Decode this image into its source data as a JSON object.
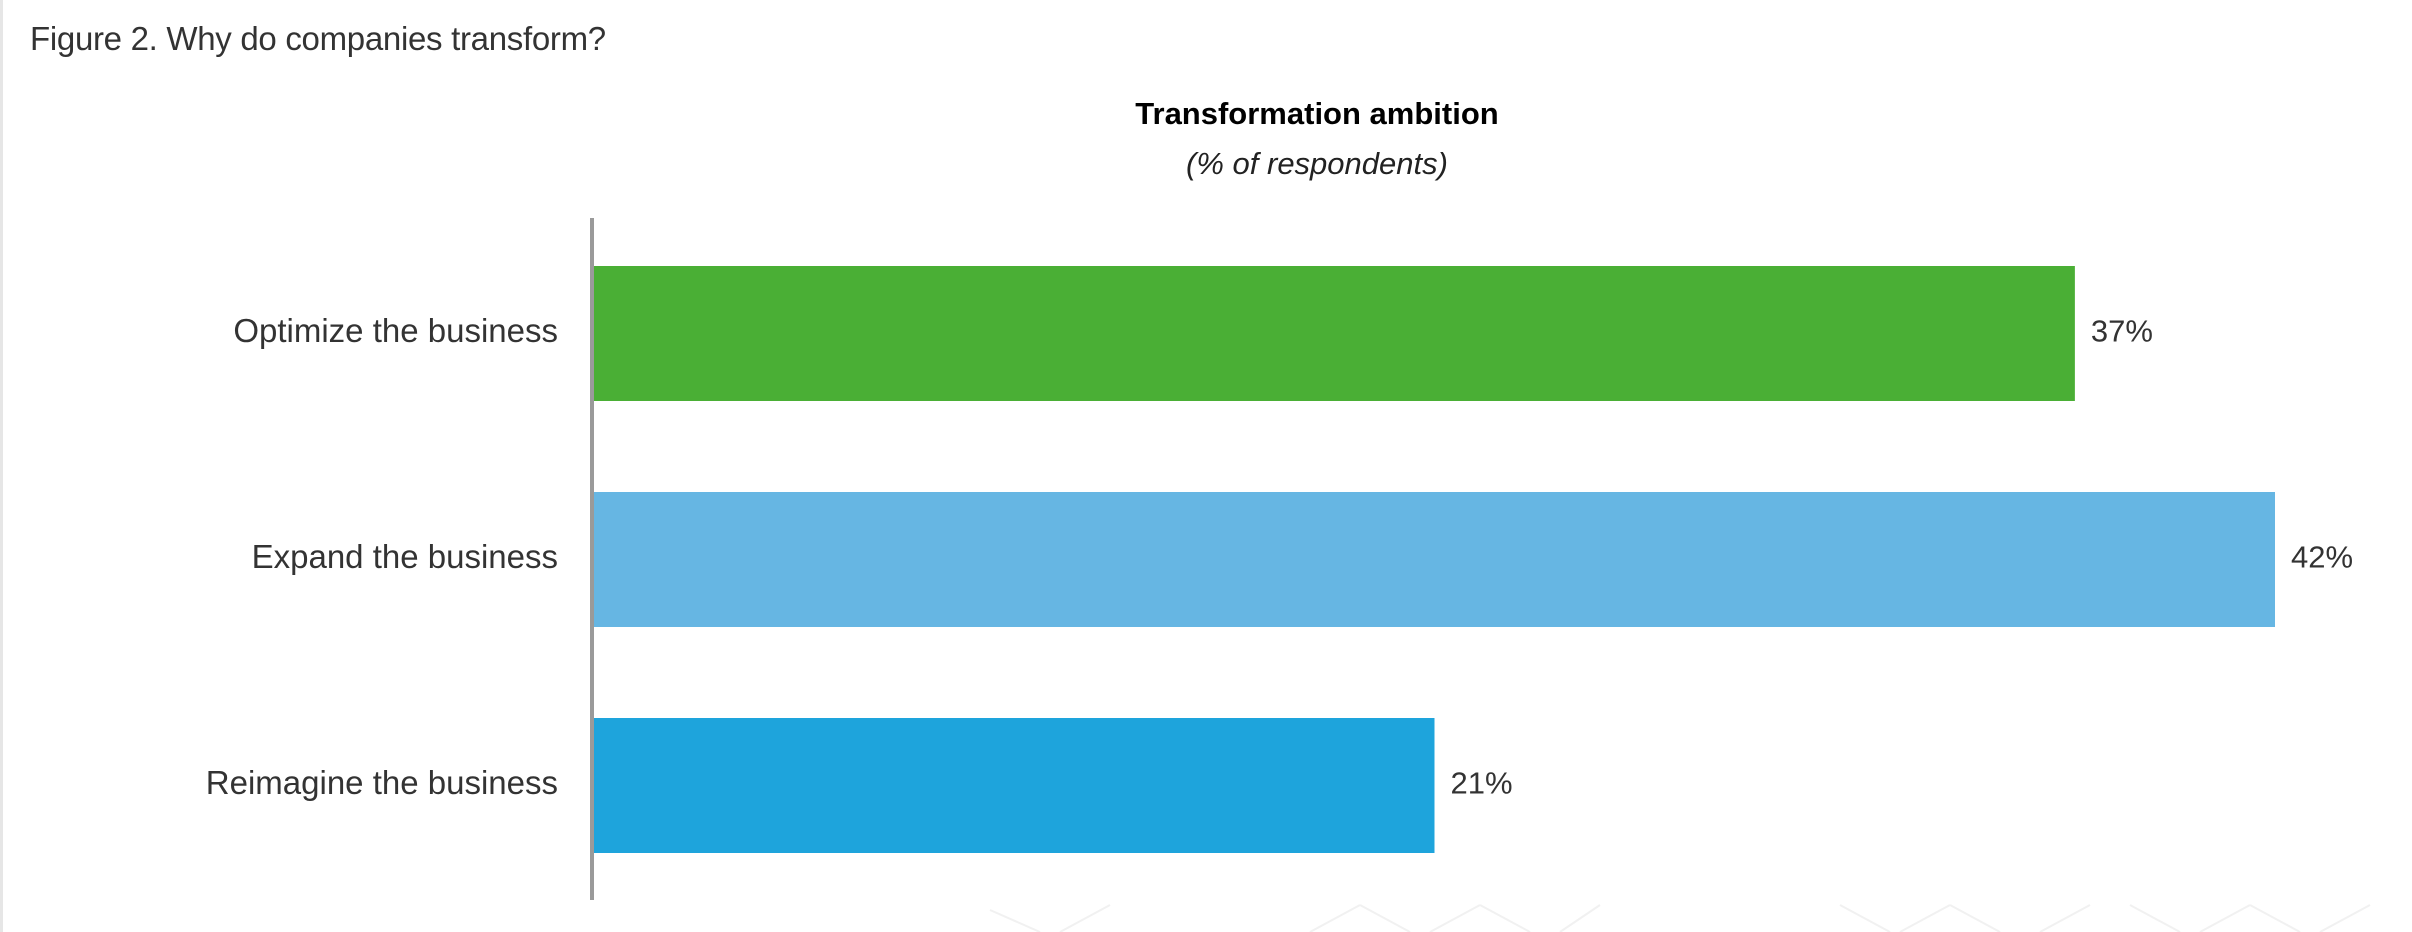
{
  "figure_caption": "Figure 2. Why do companies transform?",
  "chart_data": {
    "type": "bar",
    "orientation": "horizontal",
    "title": "Transformation ambition",
    "subtitle": "(% of respondents)",
    "categories": [
      "Optimize the business",
      "Expand the business",
      "Reimagine the business"
    ],
    "values": [
      37,
      42,
      21
    ],
    "value_labels": [
      "37%",
      "42%",
      "21%"
    ],
    "colors": [
      "#4aaf35",
      "#66b6e3",
      "#1ea4dc"
    ],
    "axis_color": "#9a9a9a",
    "xlim": [
      0,
      42
    ],
    "grid": false,
    "legend": "none"
  }
}
